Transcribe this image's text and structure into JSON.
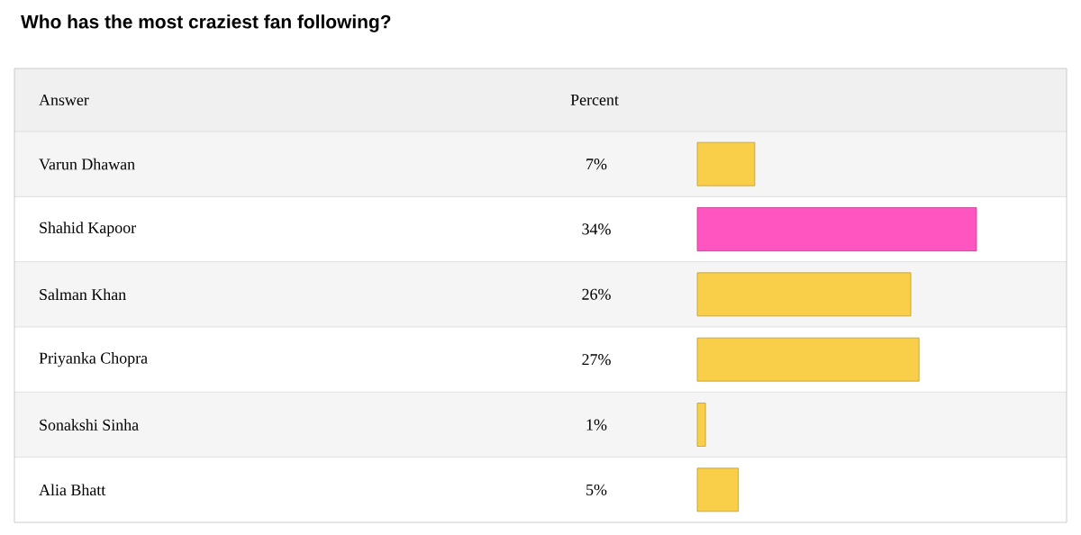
{
  "chart_data": {
    "type": "bar",
    "orientation": "horizontal",
    "title": "Who has the most craziest fan following?",
    "ylabel": "Answer",
    "xlabel": "Percent",
    "categories": [
      "Varun Dhawan",
      "Shahid Kapoor",
      "Salman Khan",
      "Priyanka Chopra",
      "Sonakshi Sinha",
      "Alia Bhatt"
    ],
    "values": [
      7,
      34,
      26,
      27,
      1,
      5
    ],
    "value_labels": [
      "7%",
      "34%",
      "26%",
      "27%",
      "1%",
      "5%"
    ],
    "colors": [
      "#f9cf4a",
      "#ff55c0",
      "#f9cf4a",
      "#f9cf4a",
      "#f9cf4a",
      "#f9cf4a"
    ]
  }
}
